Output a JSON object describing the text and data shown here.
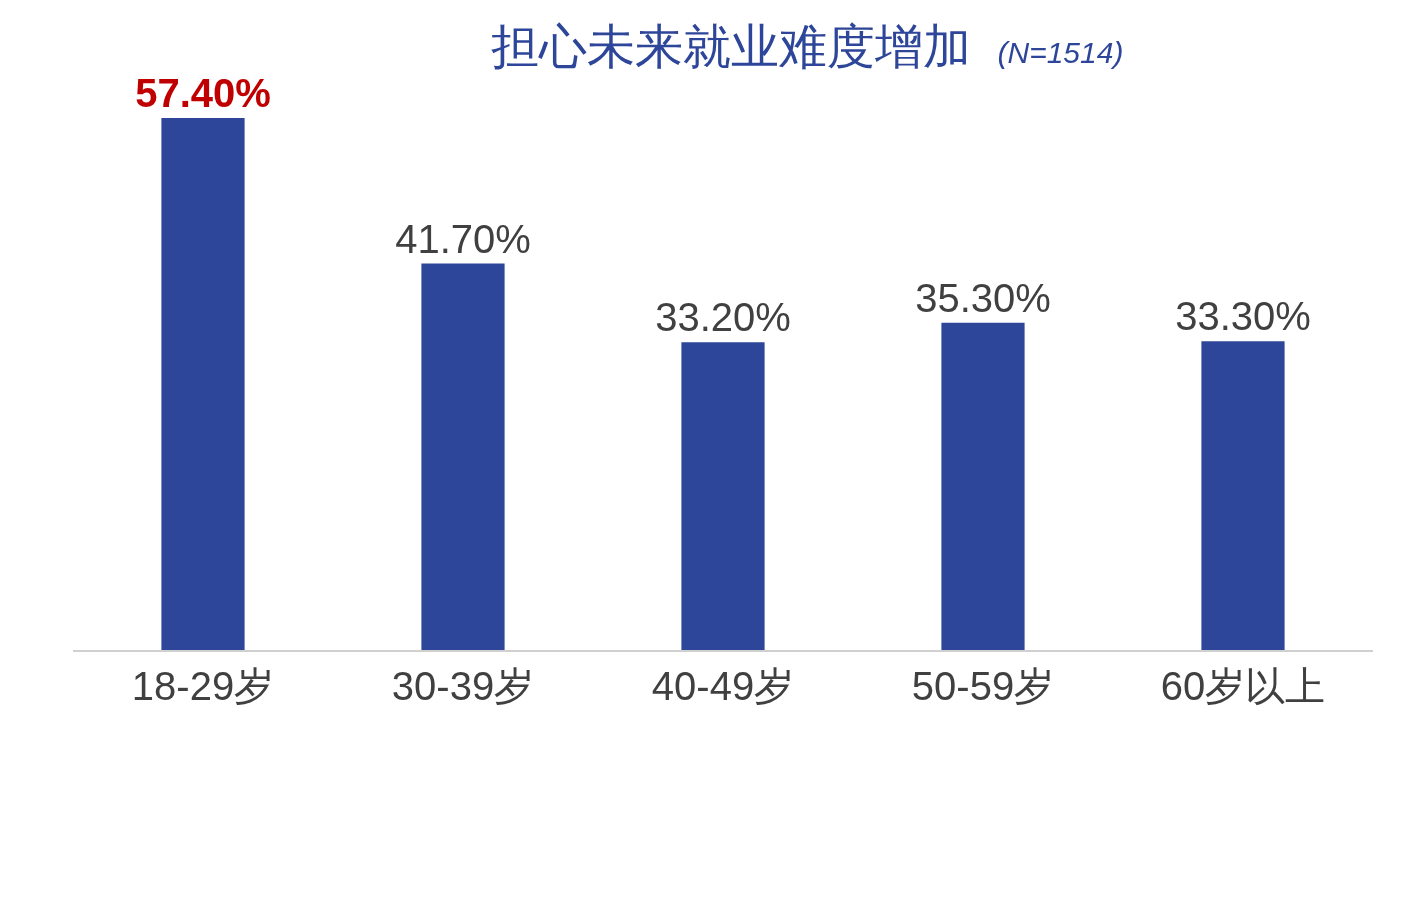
{
  "chart_data": {
    "type": "bar",
    "title": "担心未来就业难度增加",
    "subtitle": "(N=1514)",
    "categories": [
      "18-29岁",
      "30-39岁",
      "40-49岁",
      "50-59岁",
      "60岁以上"
    ],
    "values": [
      57.4,
      41.7,
      33.2,
      35.3,
      33.3
    ],
    "value_labels": [
      "57.40%",
      "41.70%",
      "33.20%",
      "35.30%",
      "33.30%"
    ],
    "color": "#2e4699",
    "grid": false,
    "legend": false,
    "tick_labels": "x"
  }
}
